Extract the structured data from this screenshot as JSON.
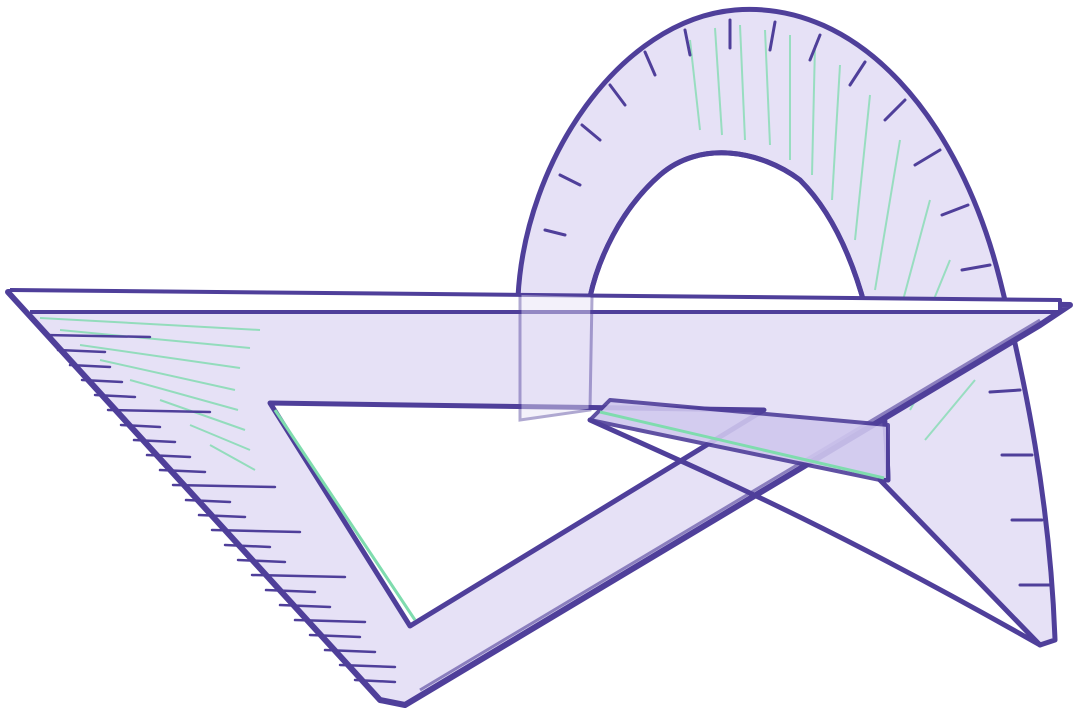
{
  "illustration": {
    "objects": [
      "protractor",
      "set-square"
    ],
    "colors": {
      "outline": "#4f3f9a",
      "fill": "#e6e1f6",
      "fill_deep": "#cfc7ee",
      "highlight": "#7fdcae",
      "background": "#ffffff"
    }
  }
}
